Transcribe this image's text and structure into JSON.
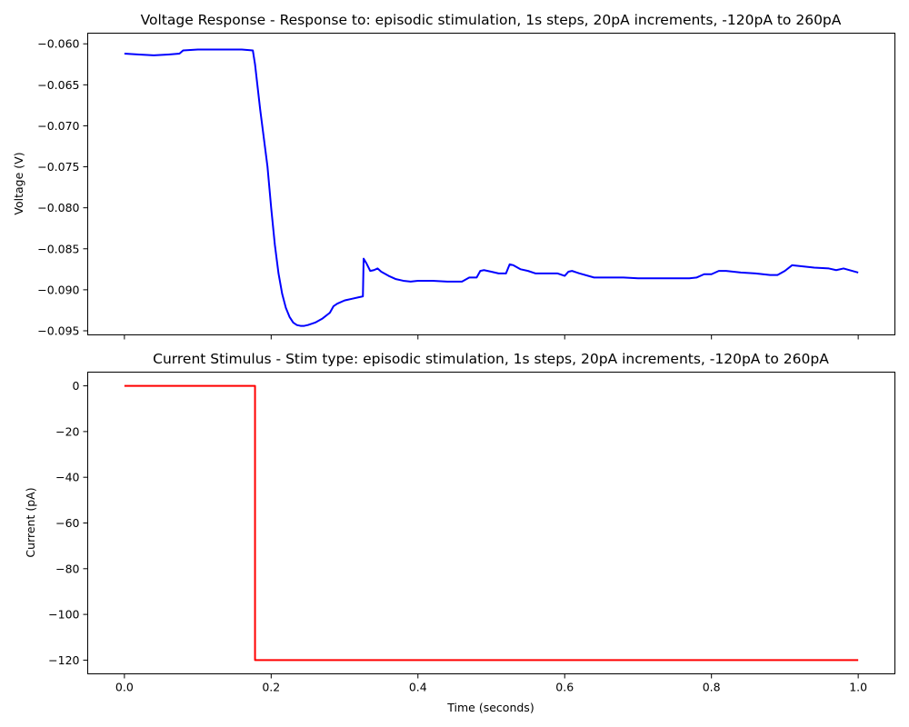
{
  "chart_data": [
    {
      "type": "line",
      "title": "Voltage Response - Response to: episodic stimulation, 1s steps, 20pA increments, -120pA to 260pA",
      "xlabel": "",
      "ylabel": "Voltage (V)",
      "xlim": [
        -0.05,
        1.05
      ],
      "ylim": [
        -0.0955,
        -0.0587
      ],
      "x_ticks": [
        0.0,
        0.2,
        0.4,
        0.6,
        0.8,
        1.0
      ],
      "x_tick_labels": [
        "",
        "",
        "",
        "",
        "",
        ""
      ],
      "y_ticks": [
        -0.095,
        -0.09,
        -0.085,
        -0.08,
        -0.075,
        -0.07,
        -0.065,
        -0.06
      ],
      "y_tick_labels": [
        "−0.095",
        "−0.090",
        "−0.085",
        "−0.080",
        "−0.075",
        "−0.070",
        "−0.065",
        "−0.060"
      ],
      "grid": false,
      "series": [
        {
          "color": "#0000ff",
          "x": [
            0.0,
            0.02,
            0.04,
            0.06,
            0.075,
            0.08,
            0.1,
            0.12,
            0.14,
            0.16,
            0.175,
            0.178,
            0.185,
            0.195,
            0.2,
            0.205,
            0.21,
            0.215,
            0.22,
            0.225,
            0.23,
            0.235,
            0.24,
            0.245,
            0.25,
            0.26,
            0.27,
            0.28,
            0.285,
            0.29,
            0.3,
            0.31,
            0.32,
            0.325,
            0.326,
            0.33,
            0.335,
            0.34,
            0.345,
            0.35,
            0.36,
            0.37,
            0.38,
            0.39,
            0.4,
            0.42,
            0.44,
            0.46,
            0.47,
            0.48,
            0.485,
            0.49,
            0.5,
            0.51,
            0.52,
            0.525,
            0.53,
            0.54,
            0.55,
            0.56,
            0.57,
            0.58,
            0.59,
            0.6,
            0.605,
            0.61,
            0.62,
            0.64,
            0.66,
            0.68,
            0.7,
            0.72,
            0.74,
            0.76,
            0.77,
            0.78,
            0.79,
            0.8,
            0.81,
            0.82,
            0.84,
            0.86,
            0.88,
            0.89,
            0.9,
            0.91,
            0.92,
            0.94,
            0.96,
            0.97,
            0.98,
            1.0
          ],
          "y": [
            -0.0612,
            -0.0613,
            -0.0614,
            -0.0613,
            -0.0612,
            -0.0608,
            -0.0607,
            -0.0607,
            -0.0607,
            -0.0607,
            -0.0608,
            -0.0625,
            -0.068,
            -0.075,
            -0.08,
            -0.0845,
            -0.088,
            -0.0905,
            -0.0922,
            -0.0933,
            -0.094,
            -0.0943,
            -0.0944,
            -0.0944,
            -0.0943,
            -0.094,
            -0.0935,
            -0.0928,
            -0.092,
            -0.0917,
            -0.0913,
            -0.0911,
            -0.0909,
            -0.0908,
            -0.0862,
            -0.0868,
            -0.0877,
            -0.0876,
            -0.0874,
            -0.0878,
            -0.0883,
            -0.0887,
            -0.0889,
            -0.089,
            -0.0889,
            -0.0889,
            -0.089,
            -0.089,
            -0.0885,
            -0.0885,
            -0.0877,
            -0.0876,
            -0.0878,
            -0.088,
            -0.088,
            -0.0869,
            -0.087,
            -0.0875,
            -0.0877,
            -0.088,
            -0.088,
            -0.088,
            -0.088,
            -0.0883,
            -0.0878,
            -0.0877,
            -0.088,
            -0.0885,
            -0.0885,
            -0.0885,
            -0.0886,
            -0.0886,
            -0.0886,
            -0.0886,
            -0.0886,
            -0.0885,
            -0.0881,
            -0.0881,
            -0.0877,
            -0.0877,
            -0.0879,
            -0.088,
            -0.0882,
            -0.0882,
            -0.0877,
            -0.087,
            -0.0871,
            -0.0873,
            -0.0874,
            -0.0876,
            -0.0874,
            -0.0879
          ]
        }
      ]
    },
    {
      "type": "line",
      "title": "Current Stimulus - Stim type: episodic stimulation, 1s steps, 20pA increments, -120pA to 260pA",
      "xlabel": "Time (seconds)",
      "ylabel": "Current (pA)",
      "xlim": [
        -0.05,
        1.05
      ],
      "ylim": [
        -126,
        6
      ],
      "x_ticks": [
        0.0,
        0.2,
        0.4,
        0.6,
        0.8,
        1.0
      ],
      "x_tick_labels": [
        "0.0",
        "0.2",
        "0.4",
        "0.6",
        "0.8",
        "1.0"
      ],
      "y_ticks": [
        0,
        -20,
        -40,
        -60,
        -80,
        -100,
        -120
      ],
      "y_tick_labels": [
        "0",
        "−20",
        "−40",
        "−60",
        "−80",
        "−100",
        "−120"
      ],
      "grid": false,
      "series": [
        {
          "color": "#ff0000",
          "x": [
            0.0,
            0.178,
            0.178,
            1.0
          ],
          "y": [
            0,
            0,
            -120,
            -120
          ]
        }
      ]
    }
  ]
}
